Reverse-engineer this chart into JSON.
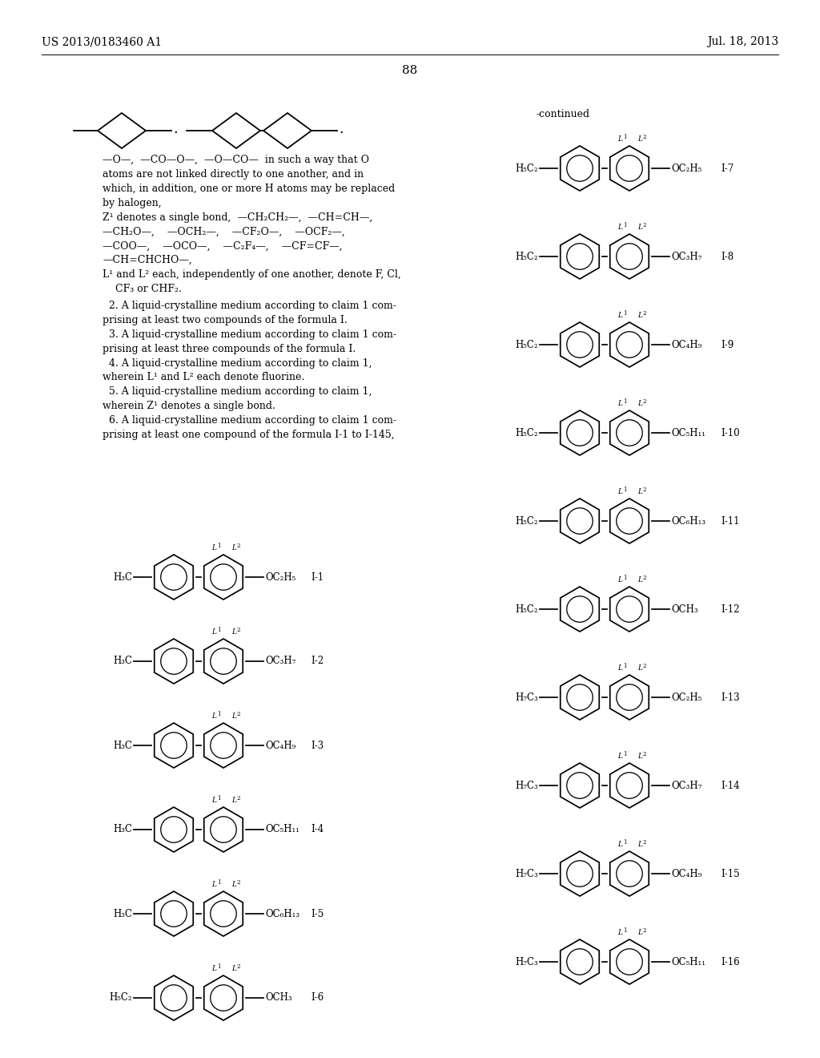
{
  "header_left": "US 2013/0183460 A1",
  "header_right": "Jul. 18, 2013",
  "page_number": "88",
  "background_color": "#ffffff",
  "continued_label": "-continued",
  "left_structures": [
    {
      "label": "I-1",
      "left_group": "H₃C",
      "right_group": "OC₂H₅"
    },
    {
      "label": "I-2",
      "left_group": "H₃C",
      "right_group": "OC₃H₇"
    },
    {
      "label": "I-3",
      "left_group": "H₃C",
      "right_group": "OC₄H₉"
    },
    {
      "label": "I-4",
      "left_group": "H₃C",
      "right_group": "OC₅H₁₁"
    },
    {
      "label": "I-5",
      "left_group": "H₃C",
      "right_group": "OC₆H₁₃"
    },
    {
      "label": "I-6",
      "left_group": "H₅C₂",
      "right_group": "OCH₃"
    }
  ],
  "right_structures": [
    {
      "label": "I-7",
      "left_group": "H₅C₂",
      "right_group": "OC₂H₅"
    },
    {
      "label": "I-8",
      "left_group": "H₅C₂",
      "right_group": "OC₃H₇"
    },
    {
      "label": "I-9",
      "left_group": "H₅C₂",
      "right_group": "OC₄H₉"
    },
    {
      "label": "I-10",
      "left_group": "H₅C₂",
      "right_group": "OC₅H₁₁"
    },
    {
      "label": "I-11",
      "left_group": "H₅C₂",
      "right_group": "OC₆H₁₃"
    },
    {
      "label": "I-12",
      "left_group": "H₅C₂",
      "right_group": "OCH₃"
    },
    {
      "label": "I-13",
      "left_group": "H₇C₃",
      "right_group": "OC₂H₅"
    },
    {
      "label": "I-14",
      "left_group": "H₇C₃",
      "right_group": "OC₃H₇"
    },
    {
      "label": "I-15",
      "left_group": "H₇C₃",
      "right_group": "OC₄H₉"
    },
    {
      "label": "I-16",
      "left_group": "H₇C₃",
      "right_group": "OC₅H₁₁"
    }
  ],
  "text_lines": [
    [
      "—O—,  —CO—O—,  —O—CO—  in such a way that O",
      "normal"
    ],
    [
      "atoms are not linked directly to one another, and in",
      "normal"
    ],
    [
      "which, in addition, one or more H atoms may be replaced",
      "normal"
    ],
    [
      "by halogen,",
      "normal"
    ],
    [
      "Z¹ denotes a single bond,  —CH₂CH₂—,  —CH=CH—,",
      "normal"
    ],
    [
      "—CH₂O—,    —OCH₂—,    —CF₂O—,    —OCF₂—,",
      "normal"
    ],
    [
      "—COO—,    —OCO—,    —C₂F₄—,    —CF=CF—,",
      "normal"
    ],
    [
      "—CH=CHCHO—,",
      "normal"
    ],
    [
      "L¹ and L² each, independently of one another, denote F, Cl,",
      "normal"
    ],
    [
      "    CF₃ or CHF₂.",
      "normal"
    ]
  ],
  "claims": [
    {
      "num": "2",
      "line1": ". A liquid-crystalline medium according to claim ",
      "bold1": "1",
      "end1": " com-",
      "line2": "prising at least two compounds of the formula I."
    },
    {
      "num": "3",
      "line1": ". A liquid-crystalline medium according to claim ",
      "bold1": "1",
      "end1": " com-",
      "line2": "prising at least three compounds of the formula I."
    },
    {
      "num": "4",
      "line1": ". A liquid-crystalline medium according to claim ",
      "bold1": "1",
      "end1": ",",
      "line2": "wherein L¹ and L² each denote fluorine."
    },
    {
      "num": "5",
      "line1": ". A liquid-crystalline medium according to claim ",
      "bold1": "1",
      "end1": ",",
      "line2": "wherein Z¹ denotes a single bond."
    },
    {
      "num": "6",
      "line1": ". A liquid-crystalline medium according to claim ",
      "bold1": "1",
      "end1": " com-",
      "line2": "prising at least one compound of the formula I-1 to I-145,"
    }
  ]
}
